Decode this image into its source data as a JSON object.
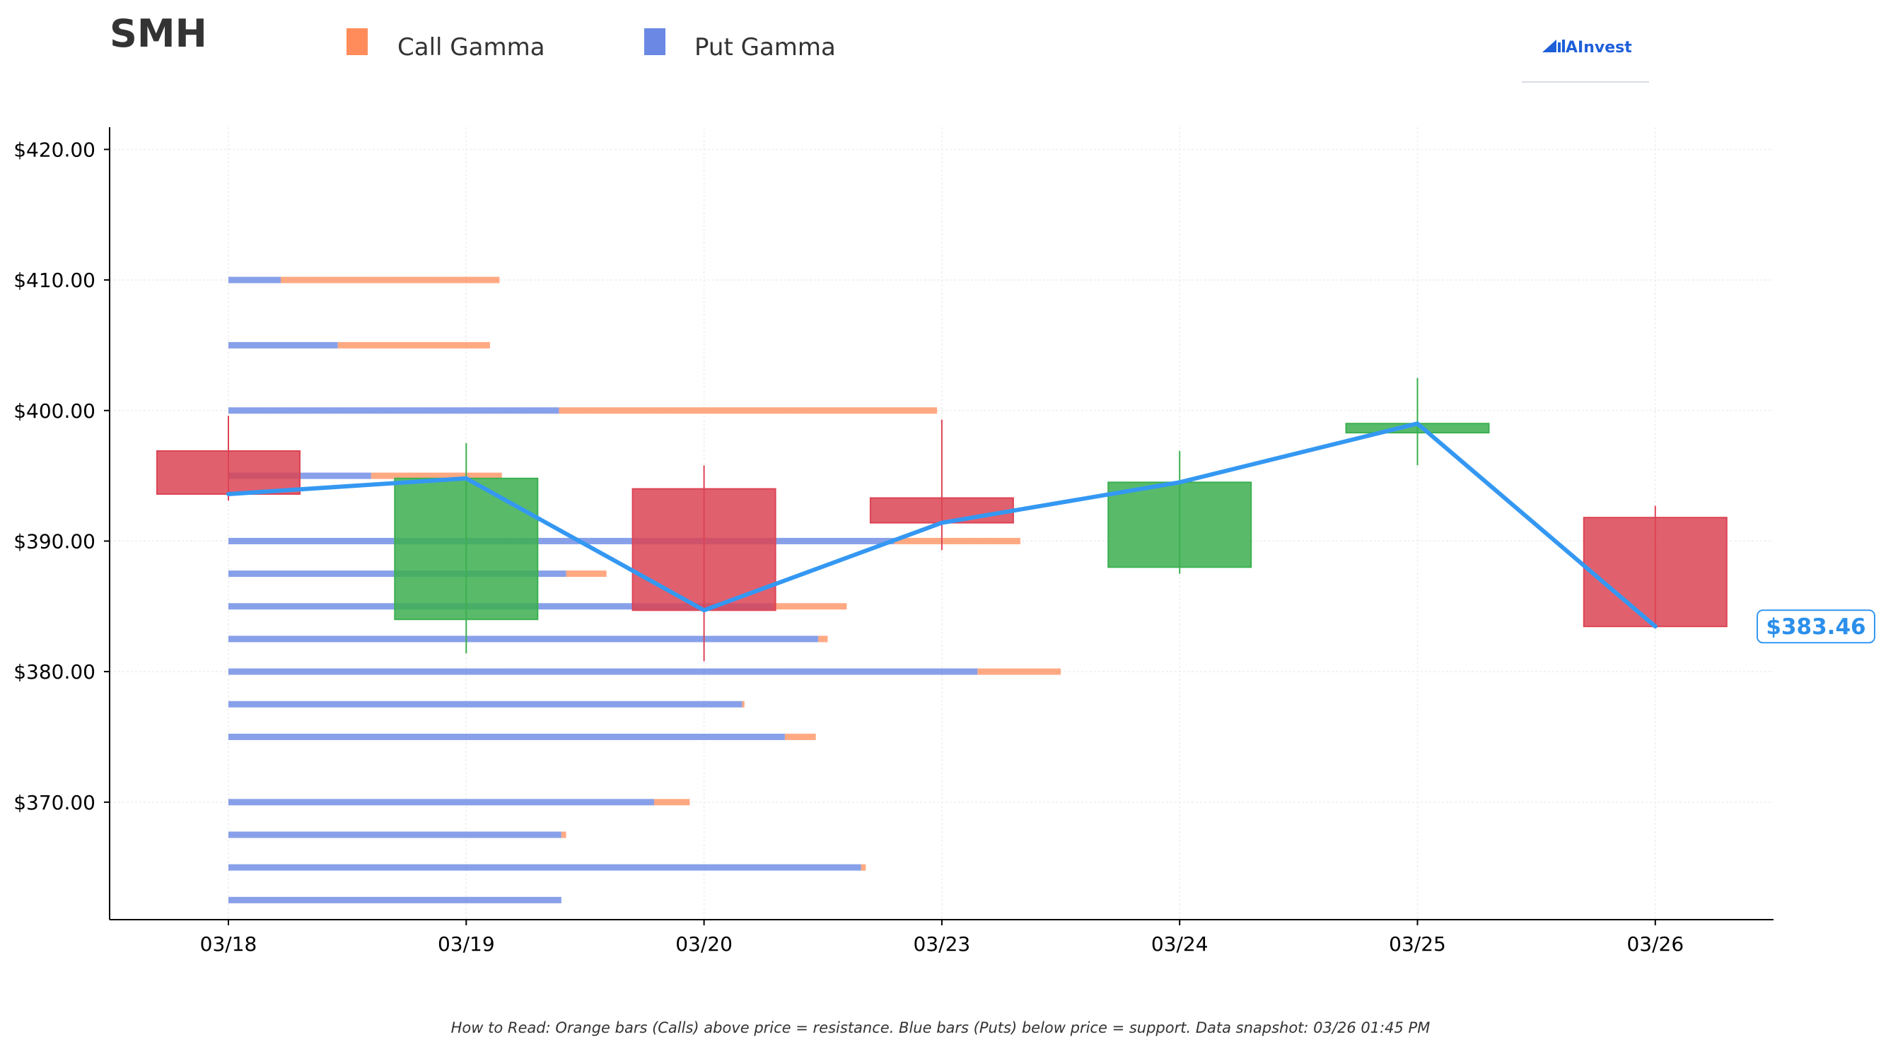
{
  "header": {
    "ticker": "SMH"
  },
  "legend": [
    {
      "label": "Call Gamma",
      "color": "#FF8C5A"
    },
    {
      "label": "Put Gamma",
      "color": "#6A88E4"
    }
  ],
  "logo": {
    "text": "AInvest",
    "icon": "ainvest-chart-logo-icon",
    "color": "#1E5FD9"
  },
  "footer": {
    "note": "How to Read: Orange bars (Calls) above price = resistance. Blue bars (Puts) below price = support. Data snapshot: 03/26 01:45 PM"
  },
  "chart_data": {
    "type": "candlestick",
    "categories": [
      "03/18",
      "03/19",
      "03/20",
      "03/23",
      "03/24",
      "03/25",
      "03/26"
    ],
    "ylim": [
      361,
      421.7
    ],
    "yticks": [
      370,
      380,
      390,
      400,
      410,
      420
    ],
    "ytick_labels": [
      "$370.00",
      "$380.00",
      "$390.00",
      "$400.00",
      "$410.00",
      "$420.00"
    ],
    "grid": true,
    "candles": [
      {
        "date": "03/18",
        "open": 396.9,
        "close": 393.6,
        "high": 399.6,
        "low": 393.1
      },
      {
        "date": "03/19",
        "open": 384.0,
        "close": 394.8,
        "high": 397.5,
        "low": 381.4
      },
      {
        "date": "03/20",
        "open": 394.0,
        "close": 384.7,
        "high": 395.8,
        "low": 380.8
      },
      {
        "date": "03/23",
        "open": 393.3,
        "close": 391.4,
        "high": 399.3,
        "low": 389.3
      },
      {
        "date": "03/24",
        "open": 388.0,
        "close": 394.5,
        "high": 396.9,
        "low": 387.5
      },
      {
        "date": "03/25",
        "open": 398.3,
        "close": 399.0,
        "high": 402.5,
        "low": 395.8
      },
      {
        "date": "03/26",
        "open": 391.8,
        "close": 383.46,
        "high": 392.7,
        "low": 383.3
      }
    ],
    "close_line": {
      "color": "#3498F2",
      "values": [
        393.6,
        394.8,
        384.7,
        391.4,
        394.5,
        399.0,
        383.46
      ]
    },
    "last_price": {
      "label": "$383.46",
      "value": 383.46
    },
    "up_color": "#3CAF50",
    "down_color": "#DC4455",
    "gamma_series_note": "bar length in x-axis category units starting at 03/18",
    "gamma_levels": [
      {
        "strike": 410.0,
        "put": 0.22,
        "call": 0.92
      },
      {
        "strike": 405.0,
        "put": 0.46,
        "call": 0.64
      },
      {
        "strike": 400.0,
        "put": 1.39,
        "call": 1.59
      },
      {
        "strike": 395.0,
        "put": 0.6,
        "call": 0.55
      },
      {
        "strike": 390.0,
        "put": 2.8,
        "call": 0.53
      },
      {
        "strike": 387.5,
        "put": 1.42,
        "call": 0.17
      },
      {
        "strike": 385.0,
        "put": 2.29,
        "call": 0.31
      },
      {
        "strike": 382.5,
        "put": 2.48,
        "call": 0.04
      },
      {
        "strike": 380.0,
        "put": 3.15,
        "call": 0.35
      },
      {
        "strike": 377.5,
        "put": 2.16,
        "call": 0.01
      },
      {
        "strike": 375.0,
        "put": 2.34,
        "call": 0.13
      },
      {
        "strike": 370.0,
        "put": 1.79,
        "call": 0.15
      },
      {
        "strike": 367.5,
        "put": 1.4,
        "call": 0.02
      },
      {
        "strike": 365.0,
        "put": 2.66,
        "call": 0.02
      },
      {
        "strike": 362.5,
        "put": 1.4,
        "call": 0.0
      }
    ]
  }
}
